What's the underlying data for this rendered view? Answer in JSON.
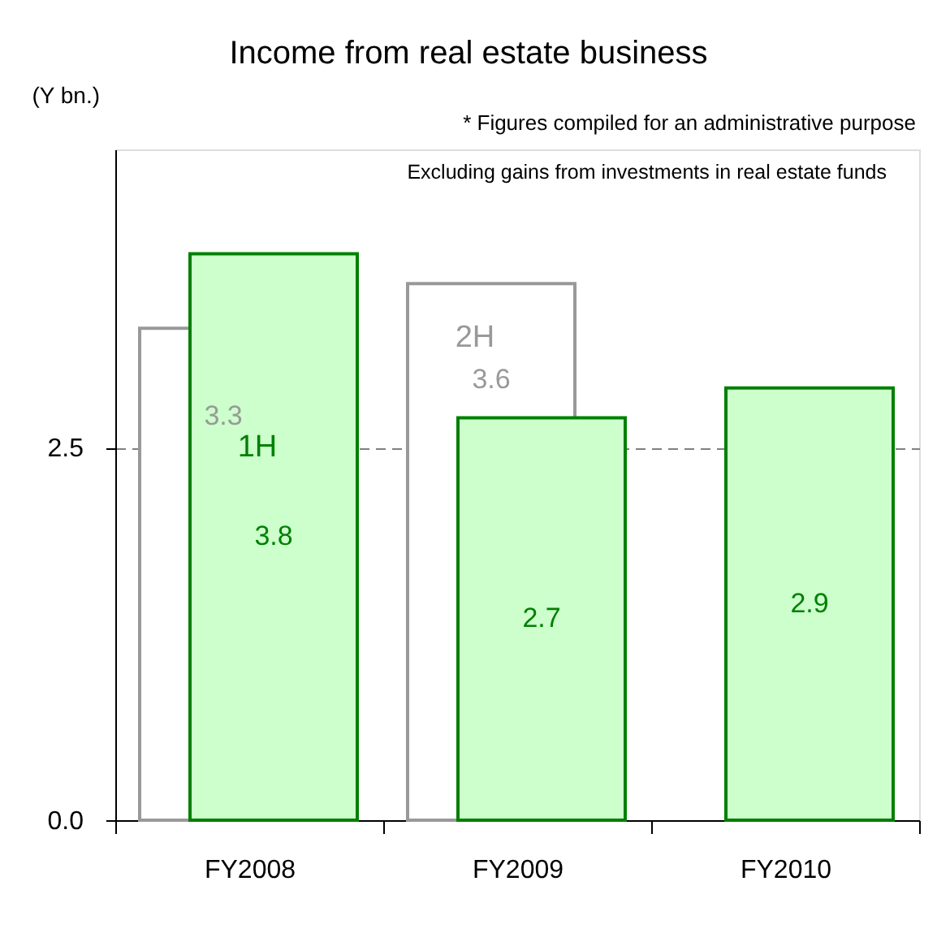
{
  "chart_data": {
    "type": "bar",
    "title": "Income from real estate business",
    "ylabel": "(Y bn.)",
    "annotations": [
      "* Figures compiled for an administrative purpose",
      "Excluding gains from investments in real estate funds"
    ],
    "categories": [
      "FY2008",
      "FY2009",
      "FY2010"
    ],
    "series": [
      {
        "name": "2H",
        "color": "#ffffff",
        "values": [
          3.3,
          3.6,
          null
        ]
      },
      {
        "name": "1H",
        "color": "#ccffcc",
        "values": [
          3.8,
          2.7,
          2.9
        ]
      }
    ],
    "ylim": [
      0,
      4.5
    ],
    "yticks": [
      {
        "value": 0,
        "label": "0.0"
      },
      2.5
    ],
    "grid": "y",
    "data_labels": true
  }
}
